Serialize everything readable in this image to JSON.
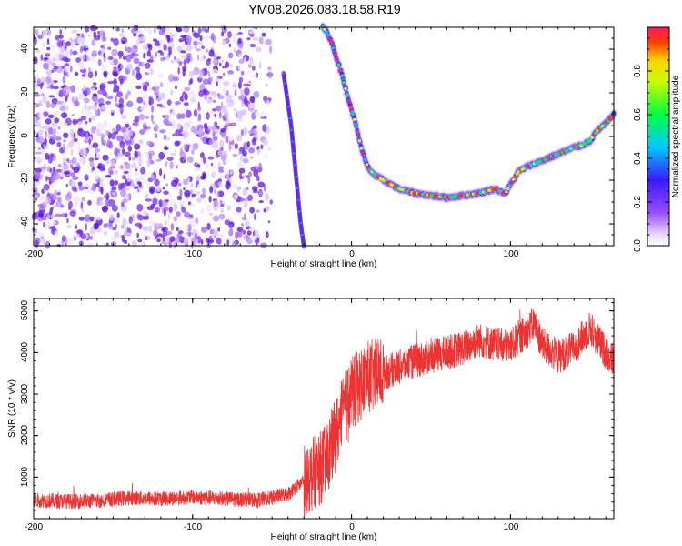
{
  "title": "YM08.2026.083.18.58.R19",
  "colors": {
    "snr_line": "#ee3333",
    "spectrogram_scatter": "#7a2cf0",
    "axis": "#000000"
  },
  "chart_data": [
    {
      "type": "heatmap",
      "title": "YM08.2026.083.18.58.R19",
      "xlabel": "Height of straight line (km)",
      "ylabel": "Frequency (Hz)",
      "xlim": [
        -200,
        165
      ],
      "ylim": [
        -50,
        50
      ],
      "xticks": [
        -200,
        -100,
        0,
        100
      ],
      "yticks": [
        -40,
        -20,
        0,
        20,
        40
      ],
      "xtick_labels": [
        "-200",
        "-100",
        "0",
        "100"
      ],
      "ytick_labels": [
        "-40",
        "-20",
        "0",
        "20",
        "40"
      ],
      "colorbar": {
        "label": "Normalized spectral amplitude",
        "range": [
          0,
          1
        ],
        "ticks": [
          0,
          0.2,
          0.4,
          0.6,
          0.8
        ],
        "tick_labels": [
          "0.0",
          "0.2",
          "0.4",
          "0.6",
          "0.8"
        ]
      },
      "ridge_trace": {
        "x": [
          -18,
          -15,
          -12,
          -9,
          -6,
          -3,
          0,
          3,
          6,
          10,
          15,
          20,
          30,
          40,
          50,
          60,
          70,
          80,
          90,
          97,
          100,
          105,
          110,
          120,
          130,
          140,
          145,
          150,
          155,
          160,
          165
        ],
        "freq": [
          50,
          47,
          42,
          35,
          28,
          20,
          12,
          5,
          -5,
          -14,
          -18,
          -20,
          -24,
          -26,
          -27,
          -28,
          -27,
          -26,
          -24,
          -26,
          -22,
          -16,
          -14,
          -11,
          -8,
          -5,
          -4,
          -2,
          3,
          6,
          10
        ]
      },
      "left_branch_trace": {
        "x": [
          -30,
          -32,
          -34,
          -36,
          -38,
          -40,
          -43
        ],
        "freq": [
          -50,
          -40,
          -25,
          -10,
          5,
          15,
          30
        ]
      }
    },
    {
      "type": "line",
      "xlabel": "Height of straight line (km)",
      "ylabel": "SNR (10 * v/v)",
      "xlim": [
        -200,
        165
      ],
      "ylim": [
        0,
        5300
      ],
      "xticks": [
        -200,
        -100,
        0,
        100
      ],
      "yticks": [
        1000,
        2000,
        3000,
        4000,
        5000
      ],
      "xtick_labels": [
        "-200",
        "-100",
        "0",
        "100"
      ],
      "ytick_labels": [
        "1000",
        "2000",
        "3000",
        "4000",
        "5000"
      ],
      "series": [
        {
          "name": "SNR",
          "x": [
            -200,
            -180,
            -160,
            -140,
            -120,
            -100,
            -80,
            -60,
            -50,
            -40,
            -30,
            -20,
            -15,
            -10,
            -5,
            0,
            5,
            10,
            20,
            30,
            40,
            50,
            60,
            70,
            80,
            90,
            100,
            110,
            115,
            120,
            130,
            140,
            150,
            160,
            165
          ],
          "values": [
            450,
            420,
            430,
            500,
            480,
            520,
            480,
            450,
            500,
            600,
            900,
            1200,
            1500,
            2000,
            2600,
            3000,
            3200,
            3400,
            3500,
            3650,
            3800,
            3900,
            4000,
            4100,
            4300,
            4200,
            4150,
            4500,
            4700,
            4200,
            3900,
            4100,
            4600,
            4000,
            3800
          ]
        }
      ]
    }
  ]
}
